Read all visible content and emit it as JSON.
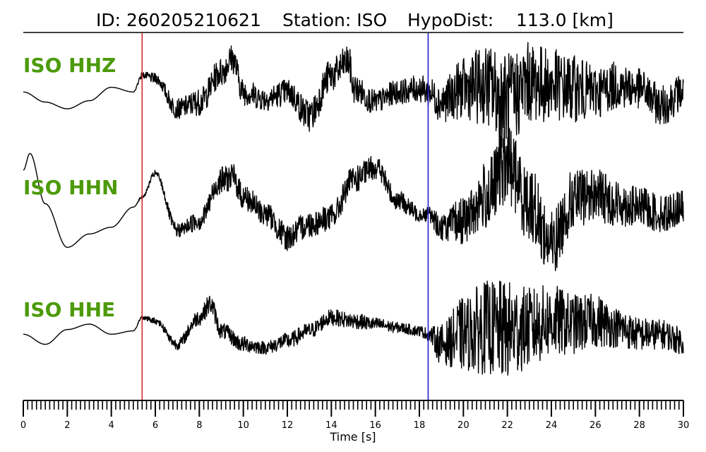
{
  "header": {
    "id_text": "ID: 260205210621",
    "station_text": "Station: ISO",
    "dist_text": "HypoDist:    113.0 [km]"
  },
  "colors": {
    "trace": "#000000",
    "p_pick": "#d62728",
    "s_pick": "#1f1fd6",
    "channel_label": "#4c9a0a"
  },
  "chart_data": {
    "type": "line",
    "title": "ID: 260205210621   Station: ISO   HypoDist:    113.0 [km]",
    "xlabel": "Time [s]",
    "ylabel": "",
    "xlim": [
      0,
      30
    ],
    "x_major_ticks": [
      0,
      2,
      4,
      6,
      8,
      10,
      12,
      14,
      16,
      18,
      20,
      22,
      24,
      26,
      28,
      30
    ],
    "x_minor_step": 0.2,
    "grid": false,
    "legend": "none",
    "markers": [
      {
        "name": "P",
        "x": 5.4,
        "color": "#d62728"
      },
      {
        "name": "S",
        "x": 18.4,
        "color": "#1f1fd6"
      }
    ],
    "series": [
      {
        "label": "ISO HHZ",
        "x": [
          0,
          1,
          2,
          3,
          4,
          5,
          5.4,
          6,
          7,
          8,
          9,
          9.5,
          10,
          11,
          12,
          13,
          14,
          14.8,
          15,
          16,
          17,
          18,
          18.4,
          19,
          20,
          21,
          22,
          23,
          24,
          25,
          26,
          27,
          28,
          29,
          30
        ],
        "y": [
          0.05,
          -0.1,
          -0.2,
          -0.08,
          0.12,
          0.05,
          0.3,
          0.25,
          -0.2,
          -0.1,
          0.35,
          0.55,
          0.05,
          -0.05,
          0.05,
          -0.3,
          0.3,
          0.5,
          0.1,
          -0.1,
          0.05,
          0.1,
          0.05,
          -0.1,
          0.1,
          0.15,
          -0.1,
          0.2,
          0.15,
          0.1,
          0.05,
          0.15,
          0.1,
          -0.15,
          0.05
        ],
        "envelope": [
          0,
          0,
          0,
          0,
          0,
          0,
          0.05,
          0.08,
          0.15,
          0.2,
          0.22,
          0.22,
          0.2,
          0.18,
          0.2,
          0.25,
          0.25,
          0.25,
          0.22,
          0.18,
          0.18,
          0.2,
          0.22,
          0.3,
          0.45,
          0.6,
          0.75,
          0.6,
          0.55,
          0.5,
          0.4,
          0.35,
          0.3,
          0.3,
          0.28
        ]
      },
      {
        "label": "ISO HHN",
        "x": [
          0,
          0.3,
          1,
          2,
          3,
          4,
          5,
          5.4,
          6,
          7,
          8,
          9,
          9.5,
          10,
          11,
          12,
          13,
          14,
          15,
          16,
          17,
          18,
          18.4,
          19,
          20,
          21,
          22,
          23,
          24,
          25,
          26,
          27,
          28,
          29,
          30
        ],
        "y": [
          0.6,
          0.85,
          0.1,
          -0.55,
          -0.35,
          -0.25,
          0.05,
          0.2,
          0.55,
          -0.3,
          -0.15,
          0.45,
          0.5,
          0.2,
          -0.05,
          -0.4,
          -0.2,
          -0.1,
          0.45,
          0.65,
          0.15,
          -0.05,
          -0.05,
          -0.25,
          -0.15,
          0.2,
          0.7,
          0.1,
          -0.5,
          0.15,
          0.25,
          0.1,
          0.05,
          -0.05,
          0.05
        ],
        "envelope": [
          0,
          0,
          0,
          0,
          0,
          0,
          0,
          0.02,
          0.05,
          0.1,
          0.15,
          0.2,
          0.2,
          0.2,
          0.18,
          0.2,
          0.2,
          0.2,
          0.2,
          0.18,
          0.15,
          0.12,
          0.12,
          0.2,
          0.35,
          0.5,
          0.6,
          0.55,
          0.5,
          0.45,
          0.4,
          0.35,
          0.3,
          0.28,
          0.25
        ]
      },
      {
        "label": "ISO HHE",
        "x": [
          0,
          1,
          2,
          3,
          4,
          5,
          5.4,
          6,
          7,
          8,
          8.5,
          9,
          10,
          11,
          12,
          13,
          14,
          15,
          16,
          17,
          18,
          18.4,
          19,
          20,
          21,
          22,
          23,
          24,
          25,
          26,
          27,
          28,
          29,
          30
        ],
        "y": [
          0.05,
          -0.1,
          0.12,
          0.2,
          0.05,
          0.1,
          0.3,
          0.25,
          -0.1,
          0.3,
          0.5,
          0.1,
          -0.1,
          -0.15,
          -0.05,
          0.1,
          0.3,
          0.25,
          0.2,
          0.15,
          0.1,
          0.05,
          -0.1,
          0.05,
          0.15,
          0.1,
          0.15,
          0.25,
          0.2,
          0.25,
          0.15,
          0.05,
          0.05,
          -0.05
        ],
        "envelope": [
          0,
          0,
          0,
          0,
          0,
          0,
          0.03,
          0.05,
          0.08,
          0.12,
          0.15,
          0.12,
          0.12,
          0.1,
          0.12,
          0.12,
          0.12,
          0.12,
          0.1,
          0.08,
          0.08,
          0.1,
          0.3,
          0.55,
          0.7,
          0.75,
          0.6,
          0.55,
          0.45,
          0.4,
          0.3,
          0.25,
          0.22,
          0.2
        ]
      }
    ]
  }
}
